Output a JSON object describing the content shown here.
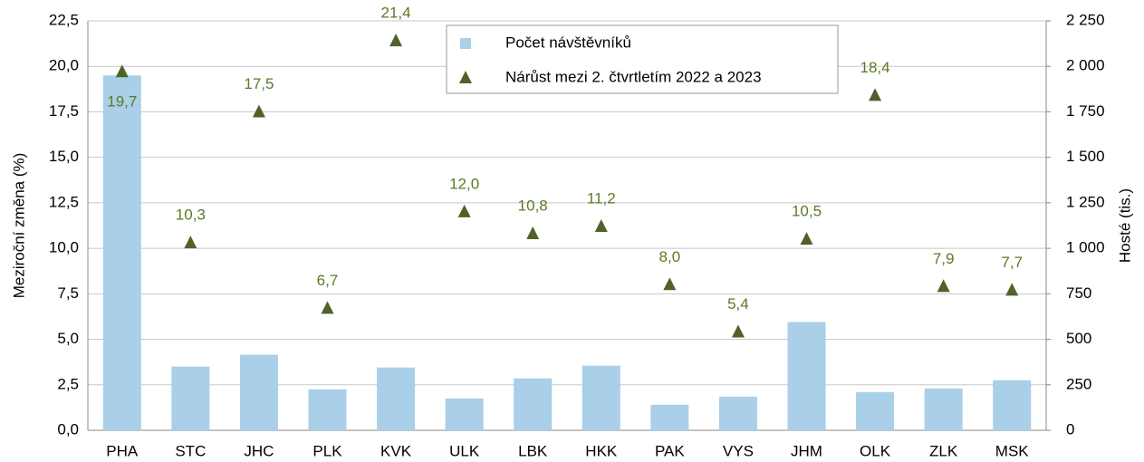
{
  "chart_data": {
    "type": "bar",
    "categories": [
      "PHA",
      "STC",
      "JHC",
      "PLK",
      "KVK",
      "ULK",
      "LBK",
      "HKK",
      "PAK",
      "VYS",
      "JHM",
      "OLK",
      "ZLK",
      "MSK"
    ],
    "series": [
      {
        "name": "Počet návštěvníků",
        "type": "bar",
        "axis": "y2",
        "color": "#a9cfe9",
        "values": [
          1950,
          350,
          415,
          225,
          345,
          175,
          285,
          355,
          140,
          185,
          595,
          210,
          230,
          275
        ]
      },
      {
        "name": "Nárůst mezi 2. čtvrtletím 2022 a 2023",
        "type": "scatter",
        "axis": "y",
        "color": "#4f6228",
        "values": [
          19.7,
          10.3,
          17.5,
          6.7,
          21.4,
          12.0,
          10.8,
          11.2,
          8.0,
          5.4,
          10.5,
          18.4,
          7.9,
          7.7
        ],
        "value_labels": [
          "19,7",
          "10,3",
          "17,5",
          "6,7",
          "21,4",
          "12,0",
          "10,8",
          "11,2",
          "8,0",
          "5,4",
          "10,5",
          "18,4",
          "7,9",
          "7,7"
        ]
      }
    ],
    "ylabel": "Meziroční změna (%)",
    "y2label": "Hosté (tis.)",
    "ylim": [
      0,
      22.5
    ],
    "yticks": [
      {
        "value": 0,
        "label": "0,0"
      },
      {
        "value": 2.5,
        "label": "2,5"
      },
      {
        "value": 5,
        "label": "5,0"
      },
      {
        "value": 7.5,
        "label": "7,5"
      },
      {
        "value": 10,
        "label": "10,0"
      },
      {
        "value": 12.5,
        "label": "12,5"
      },
      {
        "value": 15,
        "label": "15,0"
      },
      {
        "value": 17.5,
        "label": "17,5"
      },
      {
        "value": 20,
        "label": "20,0"
      },
      {
        "value": 22.5,
        "label": "22,5"
      }
    ],
    "y2lim": [
      0,
      2250
    ],
    "y2ticks": [
      0,
      250,
      500,
      750,
      {
        "value": 1000,
        "label": "1 000"
      },
      {
        "value": 1250,
        "label": "1 250"
      },
      {
        "value": 1500,
        "label": "1 500"
      },
      {
        "value": 1750,
        "label": "1 750"
      },
      {
        "value": 2000,
        "label": "2 000"
      },
      {
        "value": 2250,
        "label": "2 250"
      }
    ],
    "grid": true,
    "legend": "top"
  }
}
